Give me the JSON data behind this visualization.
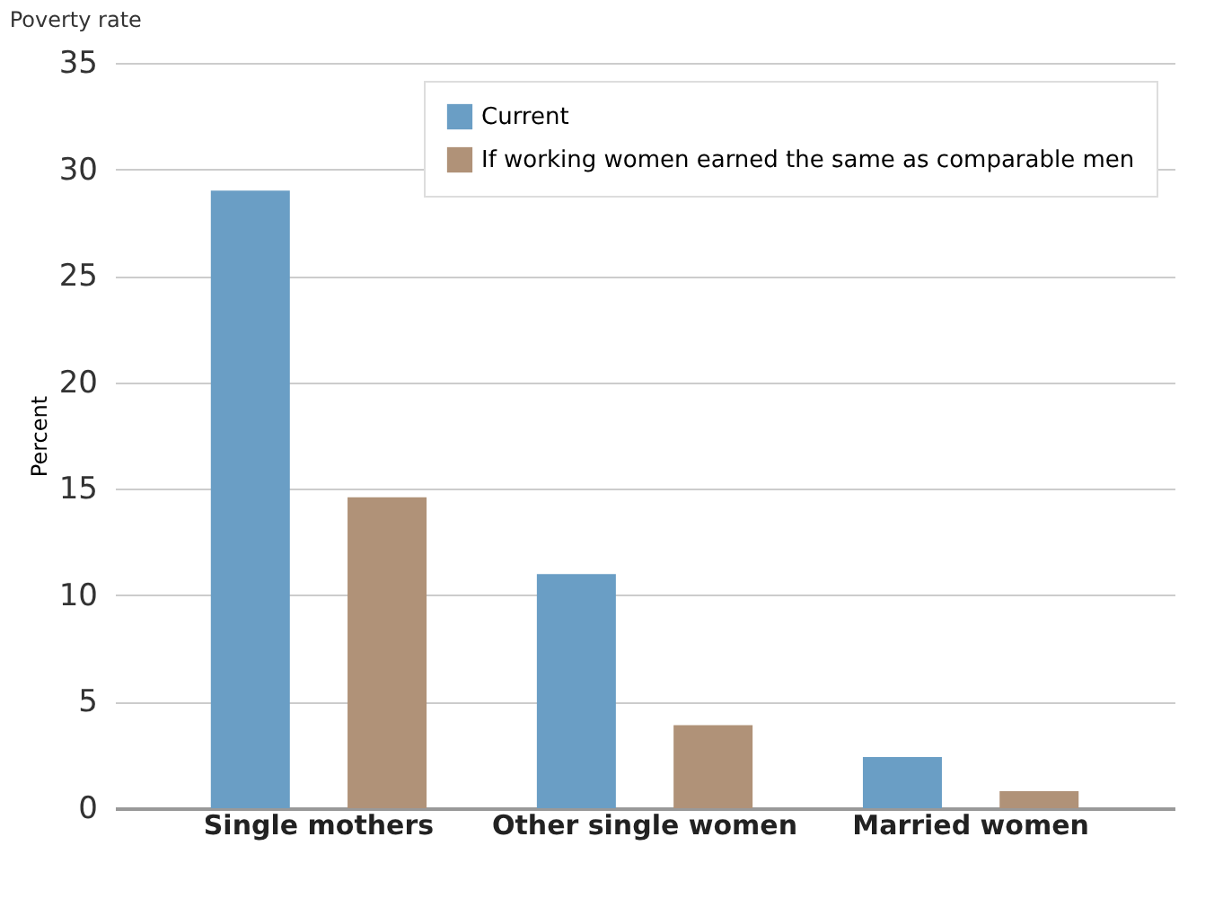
{
  "chart_data": {
    "type": "bar",
    "title": "Poverty rate",
    "ylabel": "Percent",
    "categories": [
      "Single mothers",
      "Other single women",
      "Married women"
    ],
    "series": [
      {
        "name": "Current",
        "color": "#6a9ec5",
        "values": [
          29.0,
          11.0,
          2.4
        ]
      },
      {
        "name": "If working women earned the same as comparable men",
        "color": "#b09278",
        "values": [
          14.6,
          3.9,
          0.8
        ]
      }
    ],
    "ylim": [
      0,
      35
    ],
    "yticks": [
      0,
      5,
      10,
      15,
      20,
      25,
      30,
      35
    ],
    "grid": "y",
    "legend": "top right"
  }
}
